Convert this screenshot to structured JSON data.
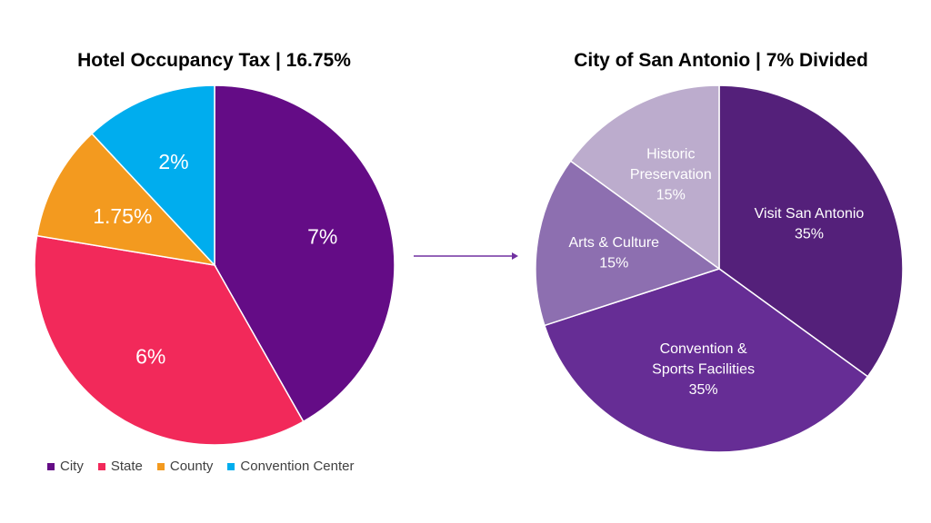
{
  "chart_data": [
    {
      "type": "pie",
      "title": "Hotel Occupancy Tax | 16.75%",
      "categories": [
        "City",
        "State",
        "County",
        "Convention Center"
      ],
      "values": [
        7,
        6,
        1.75,
        2
      ],
      "labels": [
        "7%",
        "6%",
        "1.75%",
        "2%"
      ],
      "colors": [
        "#640c86",
        "#f2295a",
        "#f39a1f",
        "#00adee"
      ],
      "legend": "bottom"
    },
    {
      "type": "pie",
      "title": "City of San Antonio | 7% Divided",
      "categories": [
        "Visit San Antonio",
        "Convention & Sports Facilities",
        "Arts & Culture",
        "Historic Preservation"
      ],
      "values": [
        35,
        35,
        15,
        15
      ],
      "labels": [
        [
          "Visit San Antonio",
          "35%"
        ],
        [
          "Convention &",
          "Sports Facilities",
          "35%"
        ],
        [
          "Arts & Culture",
          "15%"
        ],
        [
          "Historic",
          "Preservation",
          "15%"
        ]
      ],
      "colors": [
        "#54207a",
        "#662d95",
        "#8d6fb0",
        "#bcaccd"
      ],
      "legend": "none"
    }
  ],
  "arrow_color": "#7030a0"
}
